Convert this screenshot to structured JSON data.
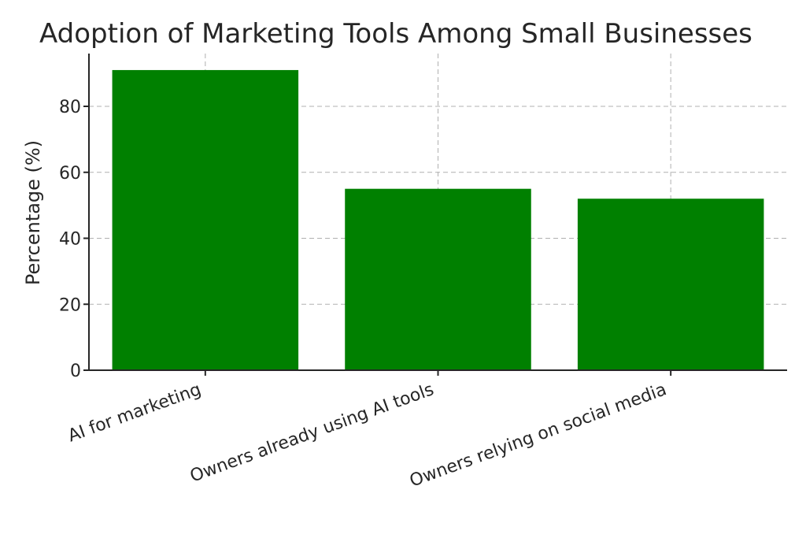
{
  "chart_data": {
    "type": "bar",
    "title": "Adoption of Marketing Tools Among Small Businesses",
    "xlabel": "",
    "ylabel": "Percentage (%)",
    "categories": [
      "AI for marketing",
      "Owners already using AI tools",
      "Owners relying on social media"
    ],
    "values": [
      91,
      55,
      52
    ],
    "ylim": [
      0,
      96
    ],
    "yticks": [
      0,
      20,
      40,
      60,
      80
    ],
    "bar_color": "#008000",
    "grid": true,
    "legend": "none"
  }
}
